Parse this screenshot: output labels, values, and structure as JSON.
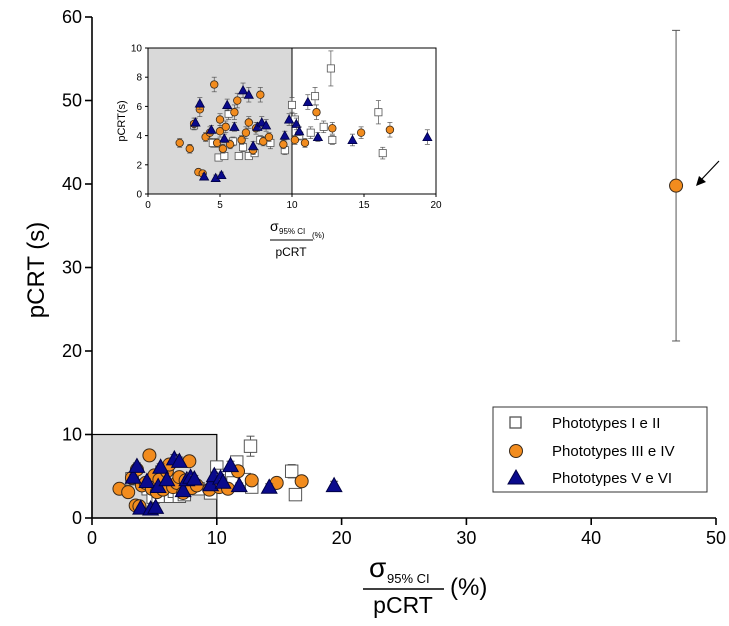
{
  "chart_data": [
    {
      "type": "scatter",
      "ylabel": "pCRT (s)",
      "xlabel": {
        "numerator_symbol": "σ",
        "numerator_subscript": "95% CI",
        "denominator": "pCRT",
        "unit": "(%)"
      },
      "xlim": [
        0,
        50
      ],
      "ylim": [
        0,
        60
      ],
      "x_ticks": [
        0,
        10,
        20,
        30,
        40,
        50
      ],
      "y_ticks": [
        0,
        10,
        20,
        30,
        40,
        50,
        60
      ],
      "highlight_region": {
        "x": [
          0,
          10
        ],
        "y": [
          0,
          10
        ],
        "color": "#d9d9d9"
      },
      "legend": {
        "placement": "bottom-right"
      },
      "series": [
        {
          "name": "Phototypes I e II",
          "marker": "square",
          "color": "#ffffff",
          "edge": "#555555",
          "points": [
            {
              "x": 3.2,
              "y": 4.7,
              "err": 0.3
            },
            {
              "x": 4.5,
              "y": 3.5,
              "err": 0.3
            },
            {
              "x": 4.9,
              "y": 2.5,
              "err": 0.2
            },
            {
              "x": 5.3,
              "y": 2.6,
              "err": 0.2
            },
            {
              "x": 5.6,
              "y": 5.5,
              "err": 0.4
            },
            {
              "x": 5.9,
              "y": 3.6,
              "err": 0.3
            },
            {
              "x": 6.3,
              "y": 2.6,
              "err": 0.2
            },
            {
              "x": 6.6,
              "y": 3.2,
              "err": 0.3
            },
            {
              "x": 7.0,
              "y": 2.6,
              "err": 0.2
            },
            {
              "x": 7.4,
              "y": 2.8,
              "err": 0.2
            },
            {
              "x": 7.8,
              "y": 3.7,
              "err": 0.3
            },
            {
              "x": 8.5,
              "y": 3.5,
              "err": 0.4
            },
            {
              "x": 9.5,
              "y": 3.0,
              "err": 0.3
            },
            {
              "x": 10.0,
              "y": 6.1,
              "err": 0.5
            },
            {
              "x": 10.2,
              "y": 5.1,
              "err": 0.4
            },
            {
              "x": 10.5,
              "y": 4.0,
              "err": 0.3
            },
            {
              "x": 11.3,
              "y": 4.2,
              "err": 0.4
            },
            {
              "x": 11.6,
              "y": 6.7,
              "err": 0.6
            },
            {
              "x": 12.2,
              "y": 4.6,
              "err": 0.4
            },
            {
              "x": 12.7,
              "y": 8.6,
              "err": 1.2
            },
            {
              "x": 12.8,
              "y": 3.7,
              "err": 0.3
            },
            {
              "x": 16.0,
              "y": 5.6,
              "err": 0.8
            },
            {
              "x": 16.3,
              "y": 2.8,
              "err": 0.4
            }
          ]
        },
        {
          "name": "Phototypes III e IV",
          "marker": "circle",
          "color": "#f28c1e",
          "edge": "#3a2a1a",
          "points": [
            {
              "x": 2.2,
              "y": 3.5,
              "err": 0.3
            },
            {
              "x": 2.9,
              "y": 3.1,
              "err": 0.3
            },
            {
              "x": 3.2,
              "y": 4.8,
              "err": 0.4
            },
            {
              "x": 3.5,
              "y": 1.5,
              "err": 0.2
            },
            {
              "x": 3.6,
              "y": 5.8,
              "err": 0.5
            },
            {
              "x": 3.8,
              "y": 1.4,
              "err": 0.2
            },
            {
              "x": 4.0,
              "y": 3.9,
              "err": 0.3
            },
            {
              "x": 4.3,
              "y": 4.2,
              "err": 0.4
            },
            {
              "x": 4.6,
              "y": 7.5,
              "err": 0.5
            },
            {
              "x": 4.8,
              "y": 3.5,
              "err": 0.3
            },
            {
              "x": 5.0,
              "y": 4.3,
              "err": 0.4
            },
            {
              "x": 5.0,
              "y": 5.1,
              "err": 0.4
            },
            {
              "x": 5.2,
              "y": 3.1,
              "err": 0.3
            },
            {
              "x": 5.4,
              "y": 4.6,
              "err": 0.4
            },
            {
              "x": 5.7,
              "y": 3.4,
              "err": 0.3
            },
            {
              "x": 6.0,
              "y": 5.6,
              "err": 0.5
            },
            {
              "x": 6.2,
              "y": 6.4,
              "err": 0.5
            },
            {
              "x": 6.5,
              "y": 3.7,
              "err": 0.3
            },
            {
              "x": 6.8,
              "y": 4.2,
              "err": 0.4
            },
            {
              "x": 7.0,
              "y": 4.9,
              "err": 0.4
            },
            {
              "x": 7.3,
              "y": 3.0,
              "err": 0.3
            },
            {
              "x": 7.5,
              "y": 4.5,
              "err": 0.4
            },
            {
              "x": 7.8,
              "y": 6.8,
              "err": 0.5
            },
            {
              "x": 8.0,
              "y": 3.6,
              "err": 0.3
            },
            {
              "x": 8.4,
              "y": 3.9,
              "err": 0.3
            },
            {
              "x": 9.4,
              "y": 3.4,
              "err": 0.3
            },
            {
              "x": 10.2,
              "y": 3.7,
              "err": 0.3
            },
            {
              "x": 10.9,
              "y": 3.5,
              "err": 0.3
            },
            {
              "x": 11.7,
              "y": 5.6,
              "err": 0.5
            },
            {
              "x": 12.8,
              "y": 4.5,
              "err": 0.4
            },
            {
              "x": 14.8,
              "y": 4.2,
              "err": 0.4
            },
            {
              "x": 16.8,
              "y": 4.4,
              "err": 0.5
            },
            {
              "x": 46.8,
              "y": 39.8,
              "err": 18.6
            }
          ]
        },
        {
          "name": "Phototypes V e VI",
          "marker": "triangle",
          "color": "#0a0a8c",
          "edge": "#000044",
          "points": [
            {
              "x": 3.3,
              "y": 4.9,
              "err": 0.3
            },
            {
              "x": 3.6,
              "y": 6.2,
              "err": 0.4
            },
            {
              "x": 3.9,
              "y": 1.2,
              "err": 0.2
            },
            {
              "x": 4.4,
              "y": 4.4,
              "err": 0.3
            },
            {
              "x": 4.7,
              "y": 1.1,
              "err": 0.2
            },
            {
              "x": 5.1,
              "y": 1.3,
              "err": 0.2
            },
            {
              "x": 5.3,
              "y": 3.8,
              "err": 0.3
            },
            {
              "x": 5.5,
              "y": 6.1,
              "err": 0.4
            },
            {
              "x": 6.0,
              "y": 4.6,
              "err": 0.3
            },
            {
              "x": 6.6,
              "y": 7.1,
              "err": 0.5
            },
            {
              "x": 7.0,
              "y": 6.8,
              "err": 0.5
            },
            {
              "x": 7.3,
              "y": 3.3,
              "err": 0.3
            },
            {
              "x": 7.6,
              "y": 4.6,
              "err": 0.3
            },
            {
              "x": 7.9,
              "y": 4.9,
              "err": 0.4
            },
            {
              "x": 8.2,
              "y": 4.7,
              "err": 0.4
            },
            {
              "x": 9.5,
              "y": 4.0,
              "err": 0.3
            },
            {
              "x": 9.8,
              "y": 5.1,
              "err": 0.4
            },
            {
              "x": 10.3,
              "y": 4.8,
              "err": 0.4
            },
            {
              "x": 10.5,
              "y": 4.3,
              "err": 0.3
            },
            {
              "x": 11.1,
              "y": 6.3,
              "err": 0.5
            },
            {
              "x": 11.8,
              "y": 3.9,
              "err": 0.3
            },
            {
              "x": 14.2,
              "y": 3.7,
              "err": 0.4
            },
            {
              "x": 19.4,
              "y": 3.9,
              "err": 0.5
            }
          ]
        }
      ]
    },
    {
      "type": "scatter",
      "ylabel": "pCRT(s)",
      "xlabel": {
        "numerator_symbol": "σ",
        "numerator_subscript": "95% CI",
        "denominator": "pCRT",
        "unit": "(%)"
      },
      "xlim": [
        0,
        20
      ],
      "ylim": [
        0,
        10
      ],
      "x_ticks": [
        0,
        5,
        10,
        15,
        20
      ],
      "y_ticks": [
        0,
        2,
        4,
        6,
        8,
        10
      ],
      "highlight_region": {
        "x": [
          0,
          10
        ],
        "y": [
          0,
          10
        ],
        "color": "#d9d9d9"
      },
      "inset_of": 0,
      "note": "same data as main chart, zoomed"
    }
  ]
}
